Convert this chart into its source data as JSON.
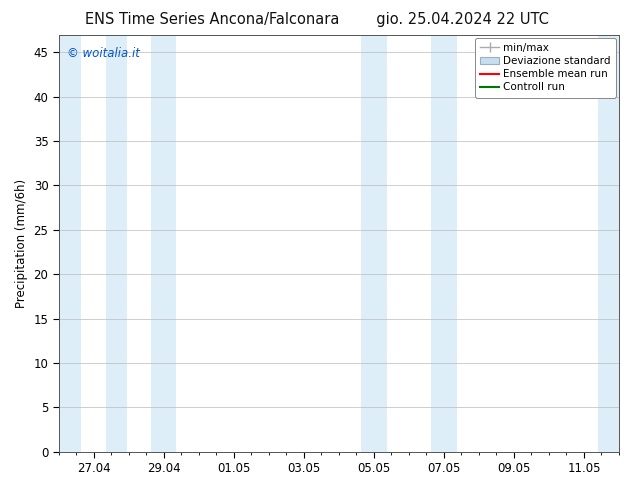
{
  "title_left": "ENS Time Series Ancona/Falconara",
  "title_right": "gio. 25.04.2024 22 UTC",
  "ylabel": "Precipitation (mm/6h)",
  "watermark": "© woitalia.it",
  "watermark_color": "#0055cc",
  "background_color": "#ffffff",
  "plot_bg_color": "#ffffff",
  "ylim": [
    0,
    47
  ],
  "yticks": [
    0,
    5,
    10,
    15,
    20,
    25,
    30,
    35,
    40,
    45
  ],
  "xtick_labels": [
    "27.04",
    "29.04",
    "01.05",
    "03.05",
    "05.05",
    "07.05",
    "09.05",
    "11.05"
  ],
  "xtick_positions": [
    0,
    1,
    2,
    3,
    4,
    5,
    6,
    7
  ],
  "xlim": [
    -0.5,
    7.5
  ],
  "band_color": "#ddeef8",
  "bands": [
    [
      -0.5,
      -0.18
    ],
    [
      0.18,
      0.48
    ],
    [
      0.82,
      1.18
    ],
    [
      3.82,
      4.18
    ],
    [
      4.82,
      5.18
    ],
    [
      7.2,
      7.5
    ]
  ],
  "legend_entries": [
    {
      "label": "min/max",
      "color": "#aaaaaa",
      "style": "errorbar"
    },
    {
      "label": "Deviazione standard",
      "color": "#c8dded",
      "style": "band"
    },
    {
      "label": "Ensemble mean run",
      "color": "#ff0000",
      "style": "line"
    },
    {
      "label": "Controll run",
      "color": "#007700",
      "style": "line"
    }
  ],
  "grid_color": "#bbbbbb",
  "spine_color": "#555555",
  "tick_label_fontsize": 8.5,
  "axis_label_fontsize": 8.5,
  "title_fontsize": 10.5,
  "legend_fontsize": 7.5
}
